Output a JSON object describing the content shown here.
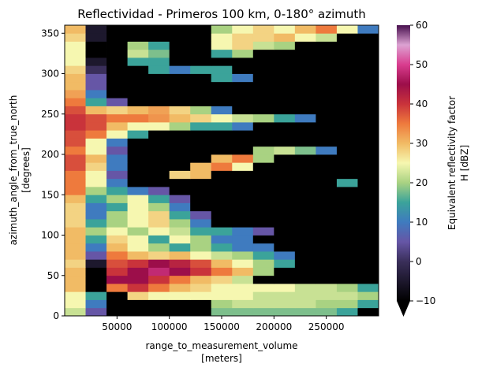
{
  "chart_data": {
    "type": "heatmap",
    "title": "Reflectividad - Primeros 100 km, 0-180° azimuth",
    "xlabel": "range_to_measurement_volume",
    "xlabel_unit": "[meters]",
    "ylabel": "azimuth_angle_from_true_north",
    "ylabel_unit": "[degrees]",
    "xlim": [
      0,
      300000
    ],
    "ylim": [
      0,
      360
    ],
    "x_ticks": [
      50000,
      100000,
      150000,
      200000,
      250000
    ],
    "y_ticks": [
      0,
      50,
      100,
      150,
      200,
      250,
      300,
      350
    ],
    "x_bin_edges_start": [
      0,
      20000,
      40000,
      60000,
      80000,
      100000,
      120000,
      140000,
      160000,
      180000,
      200000,
      220000,
      240000,
      260000,
      280000
    ],
    "x_bin_width": 20000,
    "y_bin_width": 10,
    "grid": false,
    "colorbar": {
      "label": "Equivalent reflectivity factor",
      "label_unit": "H [dBZ]",
      "range": [
        -10,
        60
      ],
      "ticks": [
        -10,
        0,
        10,
        20,
        30,
        40,
        50,
        60
      ],
      "extend": "min",
      "colormap_stops": [
        [
          -10,
          "#000000"
        ],
        [
          0,
          "#3a2f5a"
        ],
        [
          5,
          "#6656a6"
        ],
        [
          10,
          "#3f7bbf"
        ],
        [
          15,
          "#3ba39a"
        ],
        [
          20,
          "#a9d282"
        ],
        [
          25,
          "#f6f7b0"
        ],
        [
          30,
          "#f1bb65"
        ],
        [
          35,
          "#ee7a3d"
        ],
        [
          40,
          "#c9333b"
        ],
        [
          45,
          "#9c0e4a"
        ],
        [
          50,
          "#d93d8f"
        ],
        [
          55,
          "#dca2d2"
        ],
        [
          60,
          "#48104e"
        ]
      ]
    },
    "rows": [
      {
        "azimuth": 0,
        "values": [
          22,
          5,
          -10,
          -10,
          -10,
          -10,
          -10,
          18,
          18,
          18,
          18,
          18,
          18,
          15,
          -10
        ]
      },
      {
        "azimuth": 10,
        "values": [
          25,
          10,
          -10,
          -10,
          -10,
          -10,
          -10,
          20,
          22,
          22,
          22,
          22,
          20,
          20,
          15
        ]
      },
      {
        "azimuth": 20,
        "values": [
          25,
          15,
          -10,
          28,
          25,
          25,
          25,
          25,
          25,
          22,
          22,
          22,
          22,
          22,
          20
        ]
      },
      {
        "azimuth": 30,
        "values": [
          30,
          -10,
          35,
          40,
          35,
          30,
          28,
          25,
          25,
          25,
          25,
          22,
          22,
          20,
          15
        ]
      },
      {
        "azimuth": 40,
        "values": [
          30,
          -10,
          45,
          45,
          40,
          35,
          30,
          28,
          22,
          -10,
          -10,
          -10,
          -10,
          -10,
          -10
        ]
      },
      {
        "azimuth": 50,
        "values": [
          30,
          -10,
          40,
          45,
          48,
          45,
          40,
          35,
          30,
          20,
          -10,
          -10,
          -10,
          -10,
          -10
        ]
      },
      {
        "azimuth": 60,
        "values": [
          28,
          -5,
          38,
          40,
          45,
          42,
          38,
          30,
          25,
          20,
          15,
          -10,
          -10,
          -10,
          -10
        ]
      },
      {
        "azimuth": 70,
        "values": [
          30,
          5,
          35,
          30,
          28,
          30,
          25,
          22,
          20,
          15,
          10,
          -10,
          -10,
          -10,
          -10
        ]
      },
      {
        "azimuth": 80,
        "values": [
          30,
          10,
          30,
          25,
          20,
          15,
          20,
          15,
          10,
          10,
          -10,
          -10,
          -10,
          -10,
          -10
        ]
      },
      {
        "azimuth": 90,
        "values": [
          30,
          15,
          28,
          25,
          15,
          25,
          20,
          10,
          10,
          -10,
          -10,
          -10,
          -10,
          -10,
          -10
        ]
      },
      {
        "azimuth": 100,
        "values": [
          30,
          20,
          25,
          20,
          25,
          22,
          15,
          15,
          10,
          5,
          -10,
          -10,
          -10,
          -10,
          -10
        ]
      },
      {
        "azimuth": 110,
        "values": [
          28,
          15,
          20,
          25,
          28,
          20,
          10,
          -10,
          -10,
          -10,
          -10,
          -10,
          -10,
          -10,
          -10
        ]
      },
      {
        "azimuth": 120,
        "values": [
          28,
          10,
          20,
          25,
          28,
          15,
          5,
          -10,
          -10,
          -10,
          -10,
          -10,
          -10,
          -10,
          -10
        ]
      },
      {
        "azimuth": 130,
        "values": [
          28,
          10,
          15,
          25,
          20,
          10,
          -10,
          -10,
          -10,
          -10,
          -10,
          -10,
          -10,
          -10,
          -10
        ]
      },
      {
        "azimuth": 140,
        "values": [
          30,
          15,
          20,
          25,
          15,
          5,
          -10,
          -10,
          -10,
          -10,
          -10,
          -10,
          -10,
          -10,
          -10
        ]
      },
      {
        "azimuth": 150,
        "values": [
          35,
          20,
          15,
          10,
          5,
          -10,
          -10,
          -10,
          -10,
          -10,
          -10,
          -10,
          -10,
          -10,
          -10
        ]
      },
      {
        "azimuth": 160,
        "values": [
          35,
          25,
          10,
          -10,
          -10,
          -10,
          -10,
          -10,
          -10,
          -10,
          -10,
          -10,
          -10,
          15,
          -10
        ]
      },
      {
        "azimuth": 170,
        "values": [
          35,
          25,
          5,
          -10,
          -10,
          28,
          30,
          -10,
          -10,
          -10,
          -10,
          -10,
          -10,
          -10,
          -10
        ]
      },
      {
        "azimuth": 180,
        "values": [
          38,
          28,
          10,
          -10,
          -10,
          -10,
          30,
          35,
          25,
          -10,
          -10,
          -10,
          -10,
          -10,
          -10
        ]
      },
      {
        "azimuth": 190,
        "values": [
          38,
          30,
          10,
          -10,
          -10,
          -10,
          -10,
          30,
          35,
          20,
          -10,
          -10,
          -10,
          -10,
          -10
        ]
      },
      {
        "azimuth": 200,
        "values": [
          35,
          25,
          5,
          -10,
          -10,
          -10,
          -10,
          -10,
          -10,
          20,
          22,
          18,
          10,
          -10,
          -10
        ]
      },
      {
        "azimuth": 210,
        "values": [
          38,
          25,
          10,
          -10,
          -10,
          -10,
          -10,
          -10,
          -10,
          -10,
          -10,
          -10,
          -10,
          -10,
          -10
        ]
      },
      {
        "azimuth": 220,
        "values": [
          38,
          35,
          25,
          15,
          -10,
          -10,
          -10,
          -10,
          -10,
          -10,
          -10,
          -10,
          -10,
          -10,
          -10
        ]
      },
      {
        "azimuth": 230,
        "values": [
          40,
          38,
          30,
          25,
          25,
          20,
          15,
          15,
          10,
          -10,
          -10,
          -10,
          -10,
          -10,
          -10
        ]
      },
      {
        "azimuth": 240,
        "values": [
          40,
          38,
          35,
          35,
          33,
          30,
          28,
          25,
          22,
          20,
          15,
          10,
          -10,
          -10,
          -10
        ]
      },
      {
        "azimuth": 250,
        "values": [
          38,
          30,
          28,
          30,
          32,
          28,
          20,
          10,
          -10,
          -10,
          -10,
          -10,
          -10,
          -10,
          -10
        ]
      },
      {
        "azimuth": 260,
        "values": [
          35,
          15,
          5,
          -10,
          -10,
          -10,
          -10,
          -10,
          -10,
          -10,
          -10,
          -10,
          -10,
          -10,
          -10
        ]
      },
      {
        "azimuth": 270,
        "values": [
          32,
          10,
          -10,
          -10,
          -10,
          -10,
          -10,
          -10,
          -10,
          -10,
          -10,
          -10,
          -10,
          -10,
          -10
        ]
      },
      {
        "azimuth": 280,
        "values": [
          30,
          5,
          -10,
          -10,
          -10,
          -10,
          -10,
          -10,
          -10,
          -10,
          -10,
          -10,
          -10,
          -10,
          -10
        ]
      },
      {
        "azimuth": 290,
        "values": [
          30,
          5,
          -10,
          -10,
          -10,
          -10,
          -10,
          15,
          10,
          -10,
          -10,
          -10,
          -10,
          -10,
          -10
        ]
      },
      {
        "azimuth": 300,
        "values": [
          28,
          0,
          -10,
          -10,
          15,
          10,
          15,
          15,
          -10,
          -10,
          -10,
          -10,
          -10,
          -10,
          -10
        ]
      },
      {
        "azimuth": 310,
        "values": [
          25,
          -5,
          -10,
          15,
          15,
          -10,
          -10,
          -10,
          -10,
          -10,
          -10,
          -10,
          -10,
          -10,
          -10
        ]
      },
      {
        "azimuth": 320,
        "values": [
          25,
          -10,
          -10,
          22,
          18,
          -10,
          -10,
          15,
          20,
          -10,
          -10,
          -10,
          -10,
          -10,
          -10
        ]
      },
      {
        "azimuth": 330,
        "values": [
          25,
          -10,
          -10,
          20,
          15,
          -10,
          -10,
          25,
          28,
          22,
          20,
          -10,
          -10,
          -10,
          -10
        ]
      },
      {
        "azimuth": 340,
        "values": [
          28,
          -5,
          -10,
          -10,
          -10,
          -10,
          -10,
          25,
          28,
          28,
          30,
          25,
          22,
          -10,
          -10
        ]
      },
      {
        "azimuth": 350,
        "values": [
          30,
          -5,
          -10,
          -10,
          -10,
          -10,
          -10,
          20,
          25,
          28,
          25,
          30,
          35,
          25,
          10
        ]
      }
    ]
  }
}
